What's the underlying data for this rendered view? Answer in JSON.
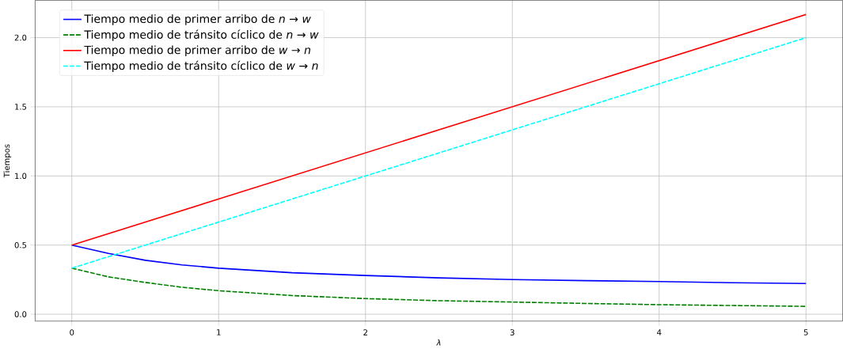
{
  "chart_data": {
    "type": "line",
    "xlabel": "*λ*",
    "ylabel": "Tiempos",
    "xlim": [
      -0.25,
      5.25
    ],
    "ylim": [
      -0.05,
      2.27
    ],
    "xticks": [
      0,
      1,
      2,
      3,
      4,
      5
    ],
    "yticks": [
      {
        "value": 0,
        "label": "0.0"
      },
      {
        "value": 0.5,
        "label": "0.5"
      },
      {
        "value": 1,
        "label": "1.0"
      },
      {
        "value": 1.5,
        "label": "1.5"
      },
      {
        "value": 2,
        "label": "2.0"
      }
    ],
    "grid": true,
    "legend": "top left",
    "marker": "none",
    "series": [
      {
        "name": "Tiempo medio de primer arribo de *n* → *w*",
        "color": "#0000ff",
        "line_style": "solid",
        "x": [
          0,
          0.25,
          0.5,
          0.75,
          1,
          1.5,
          2,
          2.5,
          3,
          3.5,
          4,
          4.5,
          5
        ],
        "values": [
          0.5,
          0.44,
          0.39,
          0.357,
          0.333,
          0.3,
          0.28,
          0.263,
          0.251,
          0.243,
          0.236,
          0.228,
          0.222
        ]
      },
      {
        "name": "Tiempo medio de tránsito cíclico de *n* → *w*",
        "color": "#008000",
        "line_style": "dashed",
        "x": [
          0,
          0.25,
          0.5,
          0.75,
          1,
          1.5,
          2,
          2.5,
          3,
          3.5,
          4,
          4.5,
          5
        ],
        "values": [
          0.333,
          0.27,
          0.23,
          0.195,
          0.17,
          0.135,
          0.113,
          0.098,
          0.088,
          0.078,
          0.069,
          0.063,
          0.057
        ]
      },
      {
        "name": "Tiempo medio de primer arribo de *w* → *n*",
        "color": "#ff0000",
        "line_style": "solid",
        "x": [
          0,
          5
        ],
        "values": [
          0.5,
          2.167
        ]
      },
      {
        "name": "Tiempo medio de tránsito cíclico de *w* → *n*",
        "color": "#00ffff",
        "line_style": "dashed",
        "x": [
          0,
          5
        ],
        "values": [
          0.333,
          2.0
        ]
      }
    ]
  }
}
